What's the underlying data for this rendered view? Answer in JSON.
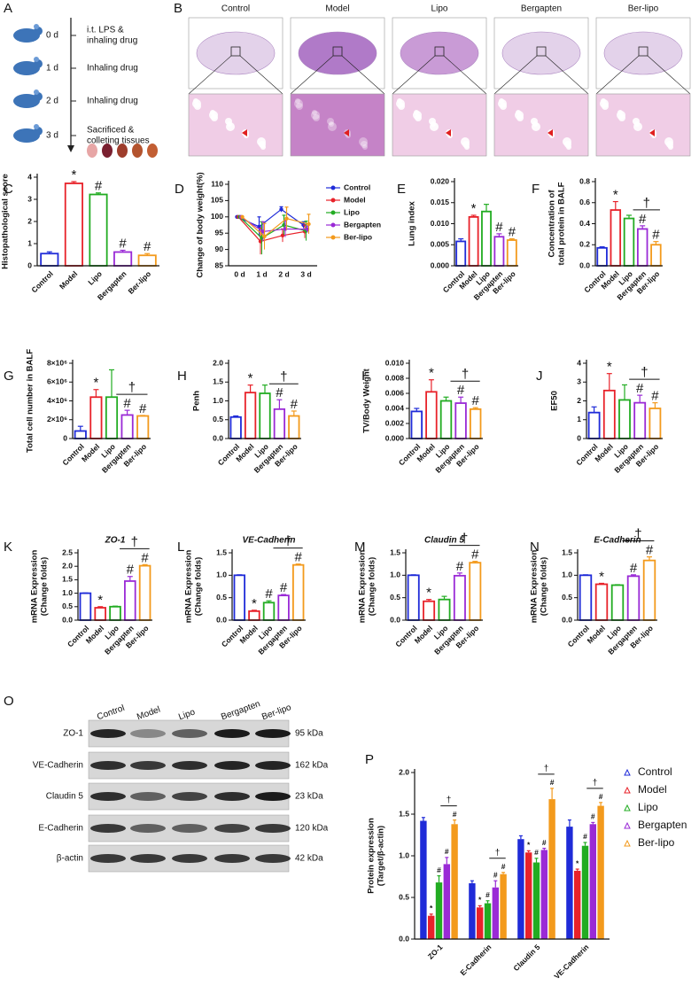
{
  "panel_a": {
    "label": "A",
    "steps": [
      {
        "day": "0 d",
        "lines": [
          "i.t. LPS &",
          "inhaling drug"
        ]
      },
      {
        "day": "1 d",
        "lines": [
          "Inhaling drug"
        ]
      },
      {
        "day": "2 d",
        "lines": [
          "Inhaling drug"
        ]
      },
      {
        "day": "3 d",
        "lines": [
          "Sacrificed &",
          "colleting tissues"
        ]
      }
    ]
  },
  "panel_b": {
    "label": "B",
    "groups": [
      "Control",
      "Model",
      "Lipo",
      "Bergapten",
      "Ber-lipo"
    ]
  },
  "panel_o": {
    "label": "O",
    "lanes": [
      "Control",
      "Model",
      "Lipo",
      "Bergapten",
      "Ber-lipo"
    ],
    "rows": [
      {
        "name": "ZO-1",
        "size": "95 kDa"
      },
      {
        "name": "VE-Cadherin",
        "size": "162 kDa"
      },
      {
        "name": "Claudin 5",
        "size": "23 kDa"
      },
      {
        "name": "E-Cadherin",
        "size": "120 kDa"
      },
      {
        "name": "β-actin",
        "size": "42 kDa"
      }
    ]
  },
  "chart_data": [
    {
      "type": "bar",
      "panel": "C",
      "ylabel": "Histopathological score",
      "categories": [
        "Control",
        "Model",
        "Lipo",
        "Bergapten",
        "Ber-lipo"
      ],
      "colors": [
        "#1f2bd8",
        "#e8222a",
        "#22ac22",
        "#9a2ad6",
        "#f39a1c"
      ],
      "values": [
        0.55,
        3.72,
        3.22,
        0.62,
        0.47
      ],
      "errors": [
        0.08,
        0.08,
        0.07,
        0.08,
        0.08
      ],
      "sig": [
        null,
        "*",
        "#",
        "#",
        "#"
      ],
      "ylim": [
        0,
        4
      ],
      "yticks": [
        0,
        1,
        2,
        3,
        4
      ]
    },
    {
      "type": "line",
      "panel": "D",
      "ylabel": "Change of body weight(%)",
      "categories": [
        "0 d",
        "1 d",
        "2 d",
        "3 d"
      ],
      "ylim": [
        85,
        110
      ],
      "yticks": [
        85,
        90,
        95,
        100,
        105,
        110
      ],
      "series": [
        {
          "name": "Control",
          "color": "#1f2bd8",
          "values": [
            100,
            97,
            102.3,
            97.5
          ],
          "errors": [
            0,
            3,
            0.8,
            1
          ]
        },
        {
          "name": "Model",
          "color": "#e8222a",
          "values": [
            100,
            92.5,
            94.3,
            95.5
          ],
          "errors": [
            0,
            4,
            2,
            2
          ]
        },
        {
          "name": "Lipo",
          "color": "#22ac22",
          "values": [
            100,
            93.5,
            97.5,
            95.7
          ],
          "errors": [
            0,
            5,
            3,
            3
          ]
        },
        {
          "name": "Bergapten",
          "color": "#9a2ad6",
          "values": [
            100,
            95.5,
            96.3,
            96.2
          ],
          "errors": [
            0,
            3,
            2.5,
            1
          ]
        },
        {
          "name": "Ber-lipo",
          "color": "#f39a1c",
          "values": [
            100,
            94,
            99.5,
            97.8
          ],
          "errors": [
            0,
            4,
            3.5,
            3
          ]
        }
      ]
    },
    {
      "type": "bar",
      "panel": "E",
      "ylabel": "Lung index",
      "categories": [
        "Control",
        "Model",
        "Lipo",
        "Bergapten",
        "Ber-lipo"
      ],
      "colors": [
        "#1f2bd8",
        "#e8222a",
        "#22ac22",
        "#9a2ad6",
        "#f39a1c"
      ],
      "values": [
        0.0058,
        0.0116,
        0.0129,
        0.0069,
        0.0061
      ],
      "errors": [
        0.0006,
        0.0004,
        0.0017,
        0.0007,
        0.0003
      ],
      "sig": [
        null,
        "*",
        null,
        "#",
        "#"
      ],
      "ylim": [
        0,
        0.02
      ],
      "yticks": [
        {
          "value": 0,
          "label": "0.000"
        },
        {
          "value": 0.005,
          "label": "0.005"
        },
        {
          "value": 0.01,
          "label": "0.010"
        },
        {
          "value": 0.015,
          "label": "0.015"
        },
        {
          "value": 0.02,
          "label": "0.020"
        }
      ]
    },
    {
      "type": "bar",
      "panel": "F",
      "ylabel": [
        "Concentration of",
        "total protein in BALF"
      ],
      "categories": [
        "Control",
        "Model",
        "Lipo",
        "Bergapten",
        "Ber-lipo"
      ],
      "colors": [
        "#1f2bd8",
        "#e8222a",
        "#22ac22",
        "#9a2ad6",
        "#f39a1c"
      ],
      "values": [
        0.17,
        0.53,
        0.45,
        0.35,
        0.2
      ],
      "errors": [
        0.01,
        0.08,
        0.03,
        0.03,
        0.03
      ],
      "sig": [
        null,
        "*",
        null,
        "#",
        "#"
      ],
      "bracket": "†",
      "ylim": [
        0,
        0.8
      ],
      "yticks": [
        {
          "value": 0,
          "label": "0.0"
        },
        0.2,
        0.4,
        0.6,
        0.8
      ]
    },
    {
      "type": "bar",
      "panel": "G",
      "ylabel": "Total cell number in BALF",
      "categories": [
        "Control",
        "Model",
        "Lipo",
        "Bergapten",
        "Ber-lipo"
      ],
      "colors": [
        "#1f2bd8",
        "#e8222a",
        "#22ac22",
        "#9a2ad6",
        "#f39a1c"
      ],
      "values": [
        800000,
        4400000,
        4400000,
        2500000,
        2400000
      ],
      "errors": [
        500000,
        800000,
        2900000,
        500000,
        50000
      ],
      "sig": [
        null,
        "*",
        null,
        "#",
        "#"
      ],
      "bracket": "†",
      "ylim": [
        0,
        8000000
      ],
      "yticks": [
        0,
        {
          "value": 2000000,
          "label": "2×10⁶"
        },
        {
          "value": 4000000,
          "label": "4×10⁶"
        },
        {
          "value": 6000000,
          "label": "6×10⁶"
        },
        {
          "value": 8000000,
          "label": "8×10⁶"
        }
      ]
    },
    {
      "type": "bar",
      "panel": "H",
      "ylabel": "Penh",
      "categories": [
        "Control",
        "Model",
        "Lipo",
        "Bergapten",
        "Ber-lipo"
      ],
      "colors": [
        "#1f2bd8",
        "#e8222a",
        "#22ac22",
        "#9a2ad6",
        "#f39a1c"
      ],
      "values": [
        0.57,
        1.22,
        1.2,
        0.78,
        0.6
      ],
      "errors": [
        0.03,
        0.2,
        0.22,
        0.25,
        0.13
      ],
      "sig": [
        null,
        "*",
        null,
        "#",
        "#"
      ],
      "bracket": "†",
      "ylim": [
        0,
        2
      ],
      "yticks": [
        {
          "value": 0,
          "label": "0.0"
        },
        0.5,
        {
          "value": 1,
          "label": "1.0"
        },
        1.5,
        {
          "value": 2,
          "label": "2.0"
        }
      ]
    },
    {
      "type": "bar",
      "panel": "I",
      "ylabel": "TV/Body Weight",
      "categories": [
        "Control",
        "Model",
        "Lipo",
        "Bergapten",
        "Ber-lipo"
      ],
      "colors": [
        "#1f2bd8",
        "#e8222a",
        "#22ac22",
        "#9a2ad6",
        "#f39a1c"
      ],
      "values": [
        0.0036,
        0.0062,
        0.005,
        0.0047,
        0.0039
      ],
      "errors": [
        0.0004,
        0.0016,
        0.0005,
        0.0008,
        0.0002
      ],
      "sig": [
        null,
        "*",
        null,
        "#",
        "#"
      ],
      "bracket": "†",
      "ylim": [
        0,
        0.01
      ],
      "yticks": [
        {
          "value": 0,
          "label": "0.000"
        },
        {
          "value": 0.002,
          "label": "0.002"
        },
        {
          "value": 0.004,
          "label": "0.004"
        },
        {
          "value": 0.006,
          "label": "0.006"
        },
        {
          "value": 0.008,
          "label": "0.008"
        },
        {
          "value": 0.01,
          "label": "0.010"
        }
      ]
    },
    {
      "type": "bar",
      "panel": "J",
      "ylabel": "EF50",
      "categories": [
        "Control",
        "Model",
        "Lipo",
        "Bergapten",
        "Ber-lipo"
      ],
      "colors": [
        "#1f2bd8",
        "#e8222a",
        "#22ac22",
        "#9a2ad6",
        "#f39a1c"
      ],
      "values": [
        1.38,
        2.55,
        2.05,
        1.9,
        1.6
      ],
      "errors": [
        0.3,
        0.9,
        0.8,
        0.4,
        0.3
      ],
      "sig": [
        null,
        "*",
        null,
        "#",
        "#"
      ],
      "bracket": "†",
      "ylim": [
        0,
        4
      ],
      "yticks": [
        0,
        1,
        2,
        3,
        4
      ]
    },
    {
      "type": "bar",
      "panel": "K",
      "title": "ZO-1",
      "ylabel": [
        "mRNA Expression",
        "(Change folds)"
      ],
      "categories": [
        "Control",
        "Model",
        "Lipo",
        "Bergapten",
        "Ber-lipo"
      ],
      "colors": [
        "#1f2bd8",
        "#e8222a",
        "#22ac22",
        "#9a2ad6",
        "#f39a1c"
      ],
      "values": [
        1.0,
        0.46,
        0.5,
        1.45,
        2.02
      ],
      "errors": [
        0.01,
        0.04,
        0.02,
        0.17,
        0.04
      ],
      "sig": [
        null,
        "*",
        null,
        "#",
        "#"
      ],
      "bracket": "†",
      "ylim": [
        0,
        2.5
      ],
      "yticks": [
        {
          "value": 0,
          "label": "0.0"
        },
        0.5,
        {
          "value": 1,
          "label": "1.0"
        },
        1.5,
        {
          "value": 2,
          "label": "2.0"
        },
        2.5
      ]
    },
    {
      "type": "bar",
      "panel": "L",
      "title": "VE-Cadherin",
      "ylabel": [
        "mRNA Expression",
        "(Change folds)"
      ],
      "categories": [
        "Control",
        "Model",
        "Lipo",
        "Bergapten",
        "Ber-lipo"
      ],
      "colors": [
        "#1f2bd8",
        "#e8222a",
        "#22ac22",
        "#9a2ad6",
        "#f39a1c"
      ],
      "values": [
        1.0,
        0.2,
        0.39,
        0.55,
        1.23
      ],
      "errors": [
        0.01,
        0.02,
        0.04,
        0.02,
        0.02
      ],
      "sig": [
        null,
        "*",
        "#",
        "#",
        "#"
      ],
      "bracket": "†",
      "ylim": [
        0,
        1.5
      ],
      "yticks": [
        {
          "value": 0,
          "label": "0.0"
        },
        0.5,
        {
          "value": 1,
          "label": "1.0"
        },
        1.5
      ]
    },
    {
      "type": "bar",
      "panel": "M",
      "title": "Claudin 5",
      "ylabel": [
        "mRNA Expression",
        "(Change folds)"
      ],
      "categories": [
        "Control",
        "Model",
        "Lipo",
        "Bergapten",
        "Ber-lipo"
      ],
      "colors": [
        "#1f2bd8",
        "#e8222a",
        "#22ac22",
        "#9a2ad6",
        "#f39a1c"
      ],
      "values": [
        1.0,
        0.42,
        0.46,
        0.99,
        1.28
      ],
      "errors": [
        0.01,
        0.04,
        0.07,
        0.06,
        0.03
      ],
      "sig": [
        null,
        "*",
        null,
        "#",
        "#"
      ],
      "bracket": "†",
      "ylim": [
        0,
        1.5
      ],
      "yticks": [
        {
          "value": 0,
          "label": "0.0"
        },
        0.5,
        {
          "value": 1,
          "label": "1.0"
        },
        1.5
      ]
    },
    {
      "type": "bar",
      "panel": "N",
      "title": "E-Cadherin",
      "ylabel": [
        "mRNA Expression",
        "(Change folds)"
      ],
      "categories": [
        "Control",
        "Model",
        "Lipo",
        "Bergapten",
        "Ber-lipo"
      ],
      "colors": [
        "#1f2bd8",
        "#e8222a",
        "#22ac22",
        "#9a2ad6",
        "#f39a1c"
      ],
      "values": [
        1.0,
        0.8,
        0.78,
        0.98,
        1.33
      ],
      "errors": [
        0.01,
        0.02,
        0.01,
        0.03,
        0.08
      ],
      "sig": [
        null,
        "*",
        null,
        "#",
        "#"
      ],
      "bracket": "†",
      "ylim": [
        0,
        1.5
      ],
      "yticks": [
        {
          "value": 0,
          "label": "0.0"
        },
        0.5,
        {
          "value": 1,
          "label": "1.0"
        },
        1.5
      ]
    },
    {
      "type": "grouped_bar",
      "panel": "P",
      "ylabel": [
        "Protein expression",
        "(Target/β-actin)"
      ],
      "categories": [
        "ZO-1",
        "E-Cadherin",
        "Claudin 5",
        "VE-Cadherin"
      ],
      "ylim": [
        0,
        2
      ],
      "yticks": [
        {
          "value": 0,
          "label": "0.0"
        },
        0.5,
        {
          "value": 1,
          "label": "1.0"
        },
        1.5,
        {
          "value": 2,
          "label": "2.0"
        }
      ],
      "brackets": [
        "†",
        "†",
        "†",
        "†"
      ],
      "legend": "upper right",
      "series": [
        {
          "name": "Control",
          "color": "#1f2bd8",
          "values": [
            1.42,
            0.67,
            1.2,
            1.35
          ],
          "errors": [
            0.04,
            0.03,
            0.04,
            0.08
          ],
          "sig": [
            null,
            null,
            null,
            null
          ]
        },
        {
          "name": "Model",
          "color": "#e8222a",
          "values": [
            0.28,
            0.38,
            1.04,
            0.82
          ],
          "errors": [
            0.02,
            0.02,
            0.02,
            0.02
          ],
          "sig": [
            "*",
            "*",
            "*",
            "*"
          ]
        },
        {
          "name": "Lipo",
          "color": "#22ac22",
          "values": [
            0.68,
            0.43,
            0.92,
            1.12
          ],
          "errors": [
            0.08,
            0.03,
            0.05,
            0.04
          ],
          "sig": [
            "#",
            "#",
            "#",
            "#"
          ]
        },
        {
          "name": "Bergapten",
          "color": "#9a2ad6",
          "values": [
            0.9,
            0.62,
            1.07,
            1.38
          ],
          "errors": [
            0.08,
            0.08,
            0.02,
            0.02
          ],
          "sig": [
            "#",
            "#",
            "#",
            "#"
          ]
        },
        {
          "name": "Ber-lipo",
          "color": "#f39a1c",
          "values": [
            1.38,
            0.78,
            1.68,
            1.6
          ],
          "errors": [
            0.05,
            0.02,
            0.13,
            0.04
          ],
          "sig": [
            "#",
            "#",
            "#",
            "#"
          ]
        }
      ]
    }
  ]
}
